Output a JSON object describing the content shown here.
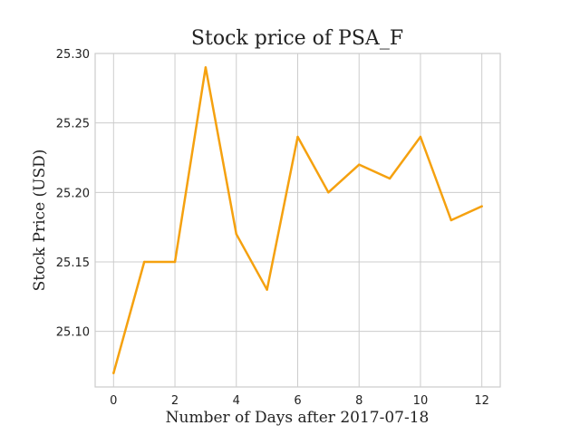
{
  "chart_data": {
    "type": "line",
    "title": "Stock price of PSA_F",
    "xlabel": "Number of Days after 2017-07-18",
    "ylabel": "Stock Price (USD)",
    "xlim": [
      -0.6,
      12.6
    ],
    "ylim": [
      25.06,
      25.3
    ],
    "xticks": [
      0,
      2,
      4,
      6,
      8,
      10,
      12
    ],
    "xtick_labels": [
      "0",
      "2",
      "4",
      "6",
      "8",
      "10",
      "12"
    ],
    "yticks": [
      25.1,
      25.15,
      25.2,
      25.25,
      25.3
    ],
    "ytick_labels": [
      "25.10",
      "25.15",
      "25.20",
      "25.25",
      "25.30"
    ],
    "grid": true,
    "series": [
      {
        "color": "#f5a10f",
        "x": [
          0,
          1,
          2,
          3,
          4,
          5,
          6,
          7,
          8,
          9,
          10,
          11,
          12
        ],
        "y": [
          25.07,
          25.15,
          25.15,
          25.29,
          25.17,
          25.13,
          25.24,
          25.2,
          25.22,
          25.21,
          25.24,
          25.18,
          25.19
        ]
      }
    ]
  }
}
